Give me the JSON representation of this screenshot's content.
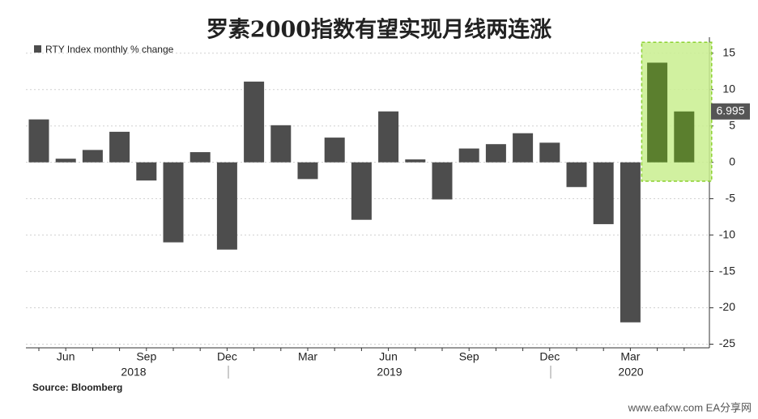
{
  "chart_data": {
    "type": "bar",
    "title": "罗素2000指数有望实现月线两连涨",
    "legend": "RTY Index monthly % change",
    "source": "Source: Bloomberg",
    "footer": "www.eafxw.com  EA分享网",
    "categories": [
      null,
      "Jun",
      null,
      null,
      "Sep",
      null,
      null,
      "Dec",
      null,
      null,
      "Mar",
      null,
      null,
      "Jun",
      null,
      null,
      "Sep",
      null,
      null,
      "Dec",
      null,
      null,
      "Mar",
      null,
      null
    ],
    "years": [
      "2018",
      "2019",
      "2020"
    ],
    "values": [
      5.9,
      0.5,
      1.7,
      4.2,
      -2.5,
      -11,
      1.4,
      -12,
      11.1,
      5.1,
      -2.3,
      3.4,
      -7.9,
      7,
      0.4,
      -5.1,
      1.9,
      2.5,
      4,
      2.7,
      -3.4,
      -8.5,
      -22,
      13.7,
      6.995
    ],
    "value_labels": [
      null,
      null,
      null,
      null,
      null,
      null,
      null,
      null,
      null,
      null,
      null,
      null,
      null,
      null,
      null,
      null,
      null,
      null,
      null,
      null,
      null,
      null,
      null,
      null,
      "6.995"
    ],
    "color": "#4d4d4d",
    "highlight_color": "#5b7f2e",
    "highlight_range": [
      -2.6,
      16.5
    ],
    "ylim": [
      -25.5,
      17.2
    ],
    "yticks": [
      15,
      10,
      5,
      0,
      -5,
      -10,
      -15,
      -20,
      -25
    ],
    "grid": true
  }
}
